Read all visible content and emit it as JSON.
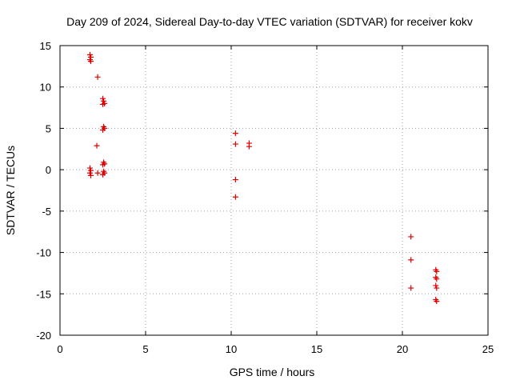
{
  "chart_data": {
    "type": "scatter",
    "title": "Day 209 of 2024, Sidereal Day-to-day VTEC variation (SDTVAR) for receiver kokv",
    "xlabel": "GPS time / hours",
    "ylabel": "SDTVAR / TECUs",
    "xlim": [
      0,
      25
    ],
    "ylim": [
      -20,
      15
    ],
    "xticks": [
      0,
      5,
      10,
      15,
      20,
      25
    ],
    "yticks": [
      -20,
      -15,
      -10,
      -5,
      0,
      5,
      10,
      15
    ],
    "grid": true,
    "marker": "+",
    "series": [
      {
        "name": "SDTVAR",
        "color": "#e00000",
        "points": [
          [
            1.75,
            13.9
          ],
          [
            1.8,
            13.6
          ],
          [
            1.75,
            13.3
          ],
          [
            1.8,
            13.1
          ],
          [
            1.75,
            0.2
          ],
          [
            1.8,
            -0.1
          ],
          [
            1.75,
            -0.4
          ],
          [
            1.8,
            -0.7
          ],
          [
            2.2,
            11.2
          ],
          [
            2.15,
            2.9
          ],
          [
            2.2,
            -0.4
          ],
          [
            2.5,
            8.6
          ],
          [
            2.55,
            8.3
          ],
          [
            2.6,
            8.0
          ],
          [
            2.5,
            7.9
          ],
          [
            2.55,
            5.2
          ],
          [
            2.6,
            5.0
          ],
          [
            2.5,
            4.8
          ],
          [
            2.55,
            0.9
          ],
          [
            2.6,
            0.7
          ],
          [
            2.5,
            0.6
          ],
          [
            2.55,
            -0.2
          ],
          [
            2.6,
            -0.4
          ],
          [
            2.5,
            -0.6
          ],
          [
            10.25,
            4.4
          ],
          [
            10.25,
            3.1
          ],
          [
            10.25,
            -1.2
          ],
          [
            10.25,
            -3.3
          ],
          [
            11.05,
            3.2
          ],
          [
            11.05,
            2.8
          ],
          [
            20.5,
            -8.1
          ],
          [
            20.5,
            -10.9
          ],
          [
            20.5,
            -14.3
          ],
          [
            21.95,
            -12.1
          ],
          [
            22.0,
            -12.3
          ],
          [
            21.95,
            -13.0
          ],
          [
            22.0,
            -13.2
          ],
          [
            21.95,
            -14.0
          ],
          [
            22.0,
            -14.3
          ],
          [
            21.95,
            -15.7
          ],
          [
            22.0,
            -15.9
          ]
        ]
      }
    ]
  }
}
